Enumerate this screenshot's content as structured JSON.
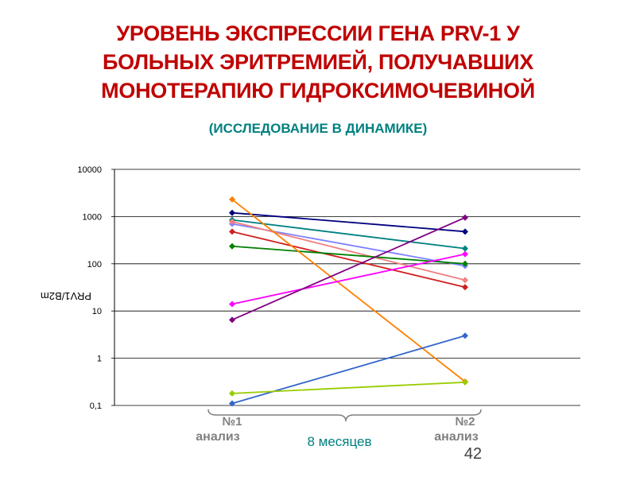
{
  "title_lines": [
    "УРОВЕНЬ ЭКСПРЕССИИ ГЕНА PRV-1 У",
    "БОЛЬНЫХ ЭРИТРЕМИЕЙ, ПОЛУЧАВШИХ",
    "МОНОТЕРАПИЮ ГИДРОКСИМОЧЕВИНОЙ"
  ],
  "subtitle": "(ИССЛЕДОВАНИЕ В ДИНАМИКЕ)",
  "labels": {
    "analysis_1": "анализ",
    "analysis_2": "анализ",
    "period": "8 месяцев",
    "page_number": "42"
  },
  "chart_data": {
    "type": "line",
    "yscale": "log",
    "ylim": [
      0.1,
      10000
    ],
    "ylabel": "PRV1/B2m",
    "yticks": [
      "0,1",
      "1",
      "10",
      "100",
      "1000",
      "10000"
    ],
    "x": [
      "№1",
      "№2"
    ],
    "grid": true,
    "legend": "none",
    "series": [
      {
        "color": "#000080",
        "values": [
          1200,
          480
        ]
      },
      {
        "color": "#008080",
        "values": [
          850,
          210
        ]
      },
      {
        "color": "#8080ff",
        "values": [
          700,
          90
        ]
      },
      {
        "color": "#f08080",
        "values": [
          780,
          45
        ]
      },
      {
        "color": "#d02020",
        "values": [
          480,
          32
        ]
      },
      {
        "color": "#008000",
        "values": [
          235,
          100
        ]
      },
      {
        "color": "#ff7f00",
        "values": [
          2300,
          0.32
        ]
      },
      {
        "color": "#ff00ff",
        "values": [
          14,
          160
        ]
      },
      {
        "color": "#800080",
        "values": [
          6.5,
          950
        ]
      },
      {
        "color": "#3366cc",
        "values": [
          0.11,
          3
        ]
      },
      {
        "color": "#99cc00",
        "values": [
          0.18,
          0.31
        ]
      }
    ]
  }
}
